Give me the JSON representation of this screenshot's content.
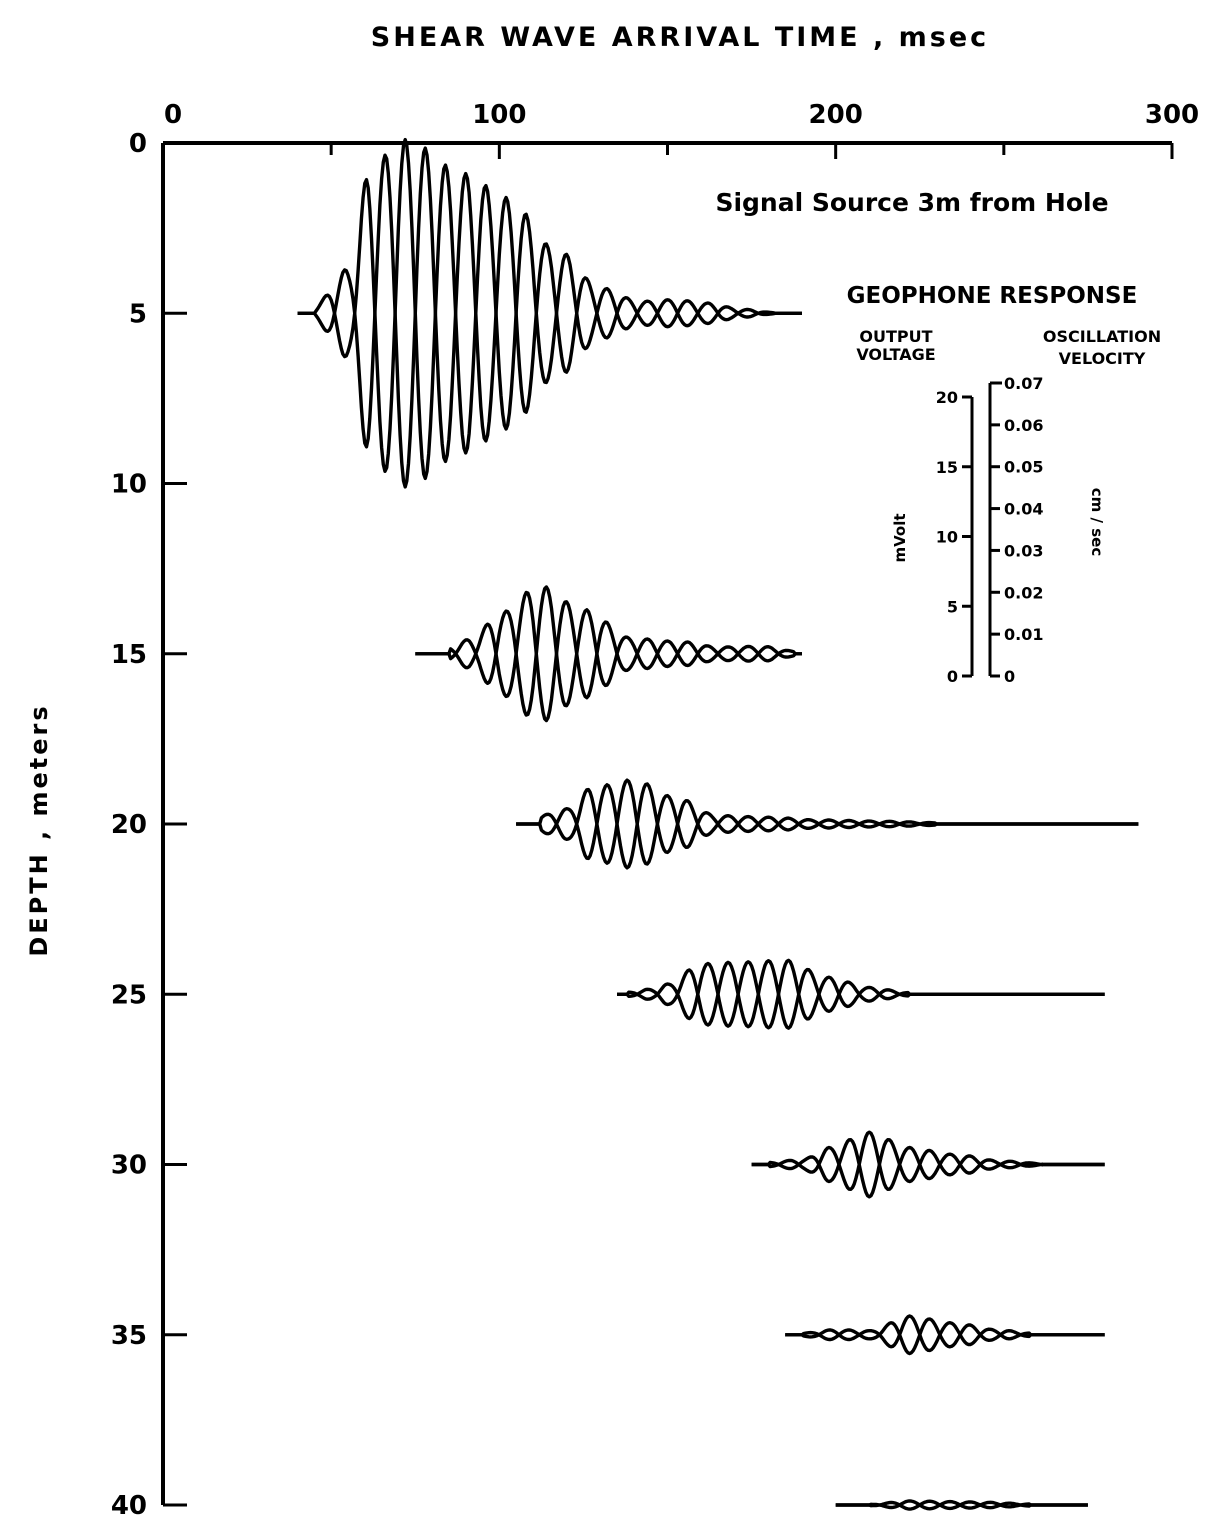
{
  "chart_data": {
    "type": "line",
    "title": "SHEAR WAVE ARRIVAL TIME , msec",
    "xlabel": "SHEAR WAVE ARRIVAL TIME , msec",
    "ylabel": "DEPTH , meters",
    "annotation": "Signal Source 3m from Hole",
    "xlim": [
      0,
      300
    ],
    "ylim": [
      0,
      40
    ],
    "x_ticks": [
      "0",
      "100",
      "200",
      "300"
    ],
    "y_ticks": [
      "0",
      "5",
      "10",
      "15",
      "20",
      "25",
      "30",
      "35",
      "40"
    ],
    "grid": false,
    "series": [
      {
        "depth": 5,
        "start": 40,
        "end": 190,
        "envelope": [
          [
            45,
            0.25
          ],
          [
            55,
            1.3
          ],
          [
            62,
            4.4
          ],
          [
            72,
            5.1
          ],
          [
            90,
            4.1
          ],
          [
            102,
            3.4
          ],
          [
            118,
            1.8
          ],
          [
            130,
            0.75
          ],
          [
            142,
            0.35
          ],
          [
            152,
            0.4
          ],
          [
            162,
            0.3
          ],
          [
            172,
            0.12
          ],
          [
            182,
            0.02
          ]
        ]
      },
      {
        "depth": 15,
        "start": 75,
        "end": 190,
        "envelope": [
          [
            85,
            0.2
          ],
          [
            92,
            0.45
          ],
          [
            100,
            1.2
          ],
          [
            112,
            2.0
          ],
          [
            125,
            1.3
          ],
          [
            140,
            0.45
          ],
          [
            155,
            0.35
          ],
          [
            165,
            0.2
          ],
          [
            178,
            0.22
          ],
          [
            188,
            0.08
          ]
        ]
      },
      {
        "depth": 20,
        "start": 105,
        "end": 290,
        "envelope": [
          [
            112,
            0.25
          ],
          [
            120,
            0.45
          ],
          [
            128,
            1.1
          ],
          [
            140,
            1.3
          ],
          [
            152,
            0.8
          ],
          [
            165,
            0.25
          ],
          [
            180,
            0.2
          ],
          [
            195,
            0.12
          ],
          [
            215,
            0.08
          ],
          [
            230,
            0.04
          ]
        ]
      },
      {
        "depth": 25,
        "start": 135,
        "end": 280,
        "envelope": [
          [
            138,
            0.06
          ],
          [
            145,
            0.15
          ],
          [
            150,
            0.3
          ],
          [
            160,
            0.9
          ],
          [
            172,
            0.95
          ],
          [
            185,
            1.0
          ],
          [
            198,
            0.5
          ],
          [
            210,
            0.2
          ],
          [
            222,
            0.05
          ]
        ]
      },
      {
        "depth": 30,
        "start": 175,
        "end": 280,
        "envelope": [
          [
            180,
            0.06
          ],
          [
            190,
            0.15
          ],
          [
            198,
            0.5
          ],
          [
            210,
            0.95
          ],
          [
            222,
            0.5
          ],
          [
            235,
            0.3
          ],
          [
            250,
            0.1
          ],
          [
            262,
            0.03
          ]
        ]
      },
      {
        "depth": 35,
        "start": 185,
        "end": 280,
        "envelope": [
          [
            190,
            0.05
          ],
          [
            200,
            0.15
          ],
          [
            210,
            0.12
          ],
          [
            222,
            0.55
          ],
          [
            235,
            0.35
          ],
          [
            248,
            0.15
          ],
          [
            258,
            0.05
          ]
        ]
      },
      {
        "depth": 40,
        "start": 200,
        "end": 275,
        "envelope": [
          [
            210,
            0.02
          ],
          [
            222,
            0.12
          ],
          [
            235,
            0.1
          ],
          [
            245,
            0.08
          ],
          [
            258,
            0.03
          ]
        ]
      }
    ],
    "legend_box": {
      "title": "GEOPHONE RESPONSE",
      "left_heading_1": "OUTPUT",
      "left_heading_2": "VOLTAGE",
      "right_heading_1": "OSCILLATION",
      "right_heading_2": "VELOCITY",
      "left_unit": "mVolt",
      "right_unit": "cm / sec",
      "left_ticks": [
        "0",
        "5",
        "10",
        "15",
        "20"
      ],
      "right_ticks": [
        "0",
        "0.01",
        "0.02",
        "0.03",
        "0.04",
        "0.05",
        "0.06",
        "0.07"
      ]
    }
  }
}
